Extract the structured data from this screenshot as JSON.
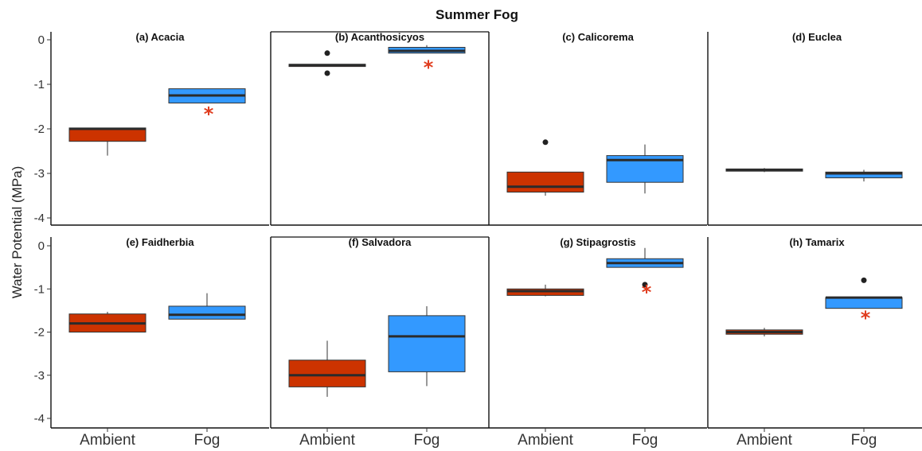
{
  "colors": {
    "ambient": "#cc3300",
    "fog": "#3399ff",
    "star": "#e03c1e",
    "median": "#2b2b2b",
    "point": "#222222"
  },
  "chart_data": {
    "type": "box",
    "title": "Summer Fog",
    "ylabel": "Water Potential (MPa)",
    "ylim": [
      -4.15,
      0.2
    ],
    "yticks": [
      0,
      -1,
      -2,
      -3,
      -4
    ],
    "categories": [
      "Ambient",
      "Fog"
    ],
    "facets": [
      {
        "label": "(a) Acacia",
        "boxes": [
          {
            "group": "Ambient",
            "min": -2.6,
            "q1": -2.28,
            "median": -2.0,
            "q3": -1.98,
            "max": -1.98,
            "outliers": []
          },
          {
            "group": "Fog",
            "min": -1.42,
            "q1": -1.42,
            "median": -1.25,
            "q3": -1.1,
            "max": -1.1,
            "outliers": []
          }
        ],
        "significant": [
          -1.6
        ]
      },
      {
        "label": "(b) Acanthosicyos",
        "boxes": [
          {
            "group": "Ambient",
            "min": -0.6,
            "q1": -0.6,
            "median": -0.57,
            "q3": -0.55,
            "max": -0.55,
            "outliers": [
              -0.3,
              -0.75
            ]
          },
          {
            "group": "Fog",
            "min": -0.3,
            "q1": -0.3,
            "median": -0.25,
            "q3": -0.17,
            "max": -0.12,
            "outliers": []
          }
        ],
        "significant": [
          -0.55
        ]
      },
      {
        "label": "(c) Calicorema",
        "boxes": [
          {
            "group": "Ambient",
            "min": -3.5,
            "q1": -3.42,
            "median": -3.3,
            "q3": -2.97,
            "max": -2.97,
            "outliers": [
              -2.3
            ]
          },
          {
            "group": "Fog",
            "min": -3.45,
            "q1": -3.2,
            "median": -2.7,
            "q3": -2.6,
            "max": -2.35,
            "outliers": []
          }
        ],
        "significant": []
      },
      {
        "label": "(d) Euclea",
        "boxes": [
          {
            "group": "Ambient",
            "min": -2.97,
            "q1": -2.95,
            "median": -2.92,
            "q3": -2.9,
            "max": -2.88,
            "outliers": []
          },
          {
            "group": "Fog",
            "min": -3.18,
            "q1": -3.1,
            "median": -3.0,
            "q3": -2.97,
            "max": -2.92,
            "outliers": []
          }
        ],
        "significant": []
      },
      {
        "label": "(e) Faidherbia",
        "boxes": [
          {
            "group": "Ambient",
            "min": -2.0,
            "q1": -2.0,
            "median": -1.8,
            "q3": -1.58,
            "max": -1.53,
            "outliers": []
          },
          {
            "group": "Fog",
            "min": -1.7,
            "q1": -1.7,
            "median": -1.6,
            "q3": -1.4,
            "max": -1.1,
            "outliers": []
          }
        ],
        "significant": []
      },
      {
        "label": "(f) Salvadora",
        "boxes": [
          {
            "group": "Ambient",
            "min": -3.5,
            "q1": -3.27,
            "median": -3.0,
            "q3": -2.65,
            "max": -2.2,
            "outliers": []
          },
          {
            "group": "Fog",
            "min": -3.25,
            "q1": -2.92,
            "median": -2.1,
            "q3": -1.62,
            "max": -1.4,
            "outliers": []
          }
        ],
        "significant": []
      },
      {
        "label": "(g) Stipagrostis",
        "boxes": [
          {
            "group": "Ambient",
            "min": -1.17,
            "q1": -1.15,
            "median": -1.05,
            "q3": -1.0,
            "max": -0.9,
            "outliers": []
          },
          {
            "group": "Fog",
            "min": -0.5,
            "q1": -0.5,
            "median": -0.4,
            "q3": -0.3,
            "max": -0.05,
            "outliers": [
              -0.9
            ]
          }
        ],
        "significant": [
          -1.0
        ]
      },
      {
        "label": "(h) Tamarix",
        "boxes": [
          {
            "group": "Ambient",
            "min": -2.1,
            "q1": -2.05,
            "median": -2.0,
            "q3": -1.95,
            "max": -1.9,
            "outliers": []
          },
          {
            "group": "Fog",
            "min": -1.45,
            "q1": -1.45,
            "median": -1.2,
            "q3": -1.2,
            "max": -1.2,
            "outliers": [
              -0.8
            ]
          }
        ],
        "significant": [
          -1.6
        ]
      }
    ]
  }
}
